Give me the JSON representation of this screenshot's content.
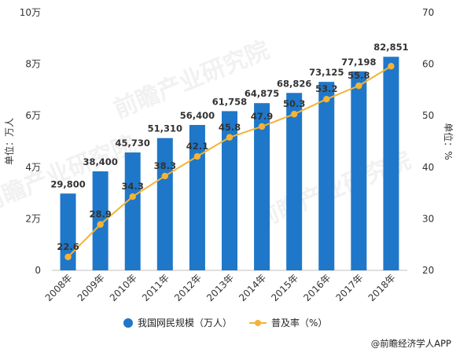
{
  "chart_data": {
    "type": "bar",
    "categories": [
      "2008年",
      "2009年",
      "2010年",
      "2011年",
      "2012年",
      "2013年",
      "2014年",
      "2015年",
      "2016年",
      "2017年",
      "2018年"
    ],
    "series": [
      {
        "name": "我国网民规模（万人）",
        "type": "bar",
        "axis": "left",
        "values": [
          29800,
          38400,
          45730,
          51310,
          56400,
          61758,
          64875,
          68826,
          73125,
          77198,
          82851
        ],
        "labels": [
          "29,800",
          "38,400",
          "45,730",
          "51,310",
          "56,400",
          "61,758",
          "64,875",
          "68,826",
          "73,125",
          "77,198",
          "82,851"
        ],
        "color": "#1f77c9"
      },
      {
        "name": "普及率（%）",
        "type": "line",
        "axis": "right",
        "values": [
          22.6,
          28.9,
          34.3,
          38.3,
          42.1,
          45.8,
          47.9,
          50.3,
          53.2,
          55.8,
          59.6
        ],
        "labels": [
          "22.6",
          "28.9",
          "34.3",
          "38.3",
          "42.1",
          "45.8",
          "47.9",
          "50.3",
          "53.2",
          "55.8",
          ""
        ],
        "color": "#f5b335"
      }
    ],
    "y_left": {
      "label": "单位：万人",
      "range": [
        0,
        100000
      ],
      "ticks": [
        0,
        20000,
        40000,
        60000,
        80000,
        100000
      ],
      "tick_labels": [
        "0",
        "2万",
        "4万",
        "6万",
        "8万",
        "10万"
      ]
    },
    "y_right": {
      "label": "单位：%",
      "range": [
        20,
        70
      ],
      "ticks": [
        20,
        30,
        40,
        50,
        60,
        70
      ],
      "tick_labels": [
        "20",
        "30",
        "40",
        "50",
        "60",
        "70"
      ]
    },
    "grid": false,
    "legend": "bottom"
  },
  "source": "@前瞻经济学人APP",
  "watermark": "前瞻产业研究院"
}
